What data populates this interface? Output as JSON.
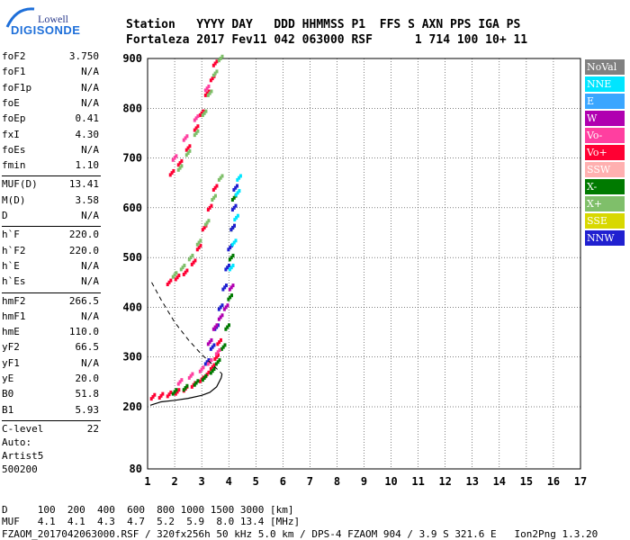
{
  "logo": {
    "top": "Lowell",
    "bottom": "DIGISONDE"
  },
  "header": {
    "line1": "Station   YYYY DAY   DDD HHMMSS P1  FFS S AXN PPS IGA PS",
    "line2": "Fortaleza 2017 Fev11 042 063000 RSF      1 714 100 10+ 11"
  },
  "params": [
    {
      "name": "foF2",
      "value": "3.750"
    },
    {
      "name": "foF1",
      "value": "N/A"
    },
    {
      "name": "foF1p",
      "value": "N/A"
    },
    {
      "name": "foE",
      "value": "N/A"
    },
    {
      "name": "foEp",
      "value": "0.41"
    },
    {
      "name": "fxI",
      "value": "4.30"
    },
    {
      "name": "foEs",
      "value": "N/A"
    },
    {
      "name": "fmin",
      "value": "1.10"
    },
    {
      "name": "MUF(D)",
      "value": "13.41"
    },
    {
      "name": "M(D)",
      "value": "3.58"
    },
    {
      "name": "D",
      "value": "N/A"
    },
    {
      "name": "h`F",
      "value": "220.0"
    },
    {
      "name": "h`F2",
      "value": "220.0"
    },
    {
      "name": "h`E",
      "value": "N/A"
    },
    {
      "name": "h`Es",
      "value": "N/A"
    },
    {
      "name": "hmF2",
      "value": "266.5"
    },
    {
      "name": "hmF1",
      "value": "N/A"
    },
    {
      "name": "hmE",
      "value": "110.0"
    },
    {
      "name": "yF2",
      "value": "66.5"
    },
    {
      "name": "yF1",
      "value": "N/A"
    },
    {
      "name": "yE",
      "value": "20.0"
    },
    {
      "name": "B0",
      "value": "51.8"
    },
    {
      "name": "B1",
      "value": "5.93"
    },
    {
      "name": "C-level",
      "value": "22"
    }
  ],
  "auto": {
    "line1": "Auto:",
    "line2": "Artist5",
    "line3": "500200"
  },
  "legend": [
    {
      "label": "NoVal",
      "color": "#808080"
    },
    {
      "label": "NNE",
      "color": "#00e5ff"
    },
    {
      "label": "E",
      "color": "#3aa6ff"
    },
    {
      "label": "W",
      "color": "#b000b0"
    },
    {
      "label": "Vo-",
      "color": "#ff3fa0"
    },
    {
      "label": "Vo+",
      "color": "#ff0033"
    },
    {
      "label": "SSW",
      "color": "#ffb0b0"
    },
    {
      "label": "X-",
      "color": "#007a00"
    },
    {
      "label": "X+",
      "color": "#7fbf6a"
    },
    {
      "label": "SSE",
      "color": "#d8d800"
    },
    {
      "label": "NNW",
      "color": "#2020d0"
    }
  ],
  "footer": {
    "d_line": "D     100  200  400  600  800 1000 1500 3000 [km]",
    "muf_line": "MUF   4.1  4.1  4.3  4.7  5.2  5.9  8.0 13.4 [MHz]",
    "info_line": "FZAOM_2017042063000.RSF / 320fx256h 50 kHz 5.0 km / DPS-4 FZAOM 904 / 3.9 S 321.6 E   Ion2Png 1.3.20"
  },
  "chart_data": {
    "type": "scatter",
    "xlim": [
      1,
      17
    ],
    "ylim": [
      80,
      900
    ],
    "x_ticks": [
      "1",
      "2",
      "3",
      "4",
      "5",
      "6",
      "7",
      "8",
      "9",
      "10",
      "11",
      "12",
      "13",
      "14",
      "15",
      "16",
      "17"
    ],
    "y_ticks": [
      "80",
      "200",
      "300",
      "400",
      "500",
      "600",
      "700",
      "800",
      "900"
    ],
    "y_tick_values": [
      80,
      200,
      300,
      400,
      500,
      600,
      700,
      800,
      900
    ],
    "grid": true,
    "profile": [
      [
        1.1,
        203
      ],
      [
        1.5,
        210
      ],
      [
        2.0,
        213
      ],
      [
        2.5,
        217
      ],
      [
        3.0,
        223
      ],
      [
        3.3,
        229
      ],
      [
        3.55,
        240
      ],
      [
        3.72,
        258
      ],
      [
        3.75,
        266
      ]
    ],
    "dashed_topside": [
      [
        1.15,
        450
      ],
      [
        1.5,
        415
      ],
      [
        2.0,
        370
      ],
      [
        2.5,
        335
      ],
      [
        3.0,
        305
      ],
      [
        3.4,
        285
      ],
      [
        3.75,
        266
      ]
    ],
    "traces": [
      {
        "color": "#ff0033",
        "points": [
          [
            1.2,
            220
          ],
          [
            1.5,
            222
          ],
          [
            1.8,
            225
          ],
          [
            2.1,
            230
          ],
          [
            2.4,
            236
          ],
          [
            2.7,
            244
          ],
          [
            3.0,
            255
          ],
          [
            3.2,
            265
          ],
          [
            3.4,
            280
          ],
          [
            3.55,
            300
          ],
          [
            3.65,
            330
          ]
        ]
      },
      {
        "color": "#007a00",
        "points": [
          [
            2.0,
            230
          ],
          [
            2.4,
            238
          ],
          [
            2.8,
            248
          ],
          [
            3.1,
            258
          ],
          [
            3.4,
            272
          ],
          [
            3.6,
            290
          ],
          [
            3.8,
            320
          ],
          [
            3.95,
            360
          ],
          [
            4.05,
            420
          ],
          [
            4.1,
            500
          ],
          [
            4.15,
            560
          ],
          [
            4.2,
            620
          ]
        ]
      },
      {
        "color": "#2020d0",
        "points": [
          [
            3.2,
            290
          ],
          [
            3.4,
            320
          ],
          [
            3.55,
            360
          ],
          [
            3.7,
            400
          ],
          [
            3.85,
            440
          ],
          [
            3.95,
            480
          ],
          [
            4.05,
            520
          ],
          [
            4.15,
            560
          ],
          [
            4.2,
            600
          ],
          [
            4.25,
            640
          ]
        ]
      },
      {
        "color": "#00e5ff",
        "points": [
          [
            4.1,
            480
          ],
          [
            4.2,
            530
          ],
          [
            4.28,
            580
          ],
          [
            4.33,
            630
          ],
          [
            4.38,
            660
          ]
        ]
      },
      {
        "color": "#b000b0",
        "points": [
          [
            3.3,
            330
          ],
          [
            3.5,
            360
          ],
          [
            3.7,
            380
          ],
          [
            3.9,
            400
          ],
          [
            4.1,
            440
          ]
        ]
      },
      {
        "color": "#ff3fa0",
        "points": [
          [
            2.2,
            250
          ],
          [
            2.6,
            262
          ],
          [
            3.0,
            275
          ],
          [
            3.3,
            290
          ],
          [
            3.6,
            310
          ]
        ]
      },
      {
        "color": "#ff0033",
        "points": [
          [
            1.8,
            450
          ],
          [
            2.1,
            460
          ],
          [
            2.4,
            470
          ],
          [
            2.7,
            490
          ],
          [
            2.9,
            520
          ],
          [
            3.1,
            560
          ],
          [
            3.3,
            600
          ],
          [
            3.5,
            640
          ]
        ]
      },
      {
        "color": "#7fbf6a",
        "points": [
          [
            2.0,
            465
          ],
          [
            2.3,
            480
          ],
          [
            2.6,
            500
          ],
          [
            2.9,
            530
          ],
          [
            3.2,
            570
          ],
          [
            3.45,
            620
          ],
          [
            3.7,
            660
          ]
        ]
      },
      {
        "color": "#ff0033",
        "points": [
          [
            1.9,
            670
          ],
          [
            2.2,
            690
          ],
          [
            2.5,
            720
          ],
          [
            2.8,
            760
          ],
          [
            3.0,
            790
          ],
          [
            3.2,
            830
          ],
          [
            3.4,
            860
          ],
          [
            3.5,
            890
          ]
        ]
      },
      {
        "color": "#7fbf6a",
        "points": [
          [
            2.2,
            680
          ],
          [
            2.5,
            710
          ],
          [
            2.8,
            750
          ],
          [
            3.1,
            790
          ],
          [
            3.3,
            830
          ],
          [
            3.5,
            870
          ],
          [
            3.7,
            900
          ]
        ]
      },
      {
        "color": "#ff3fa0",
        "points": [
          [
            2.0,
            700
          ],
          [
            2.4,
            740
          ],
          [
            2.8,
            780
          ],
          [
            3.2,
            840
          ]
        ]
      }
    ]
  }
}
